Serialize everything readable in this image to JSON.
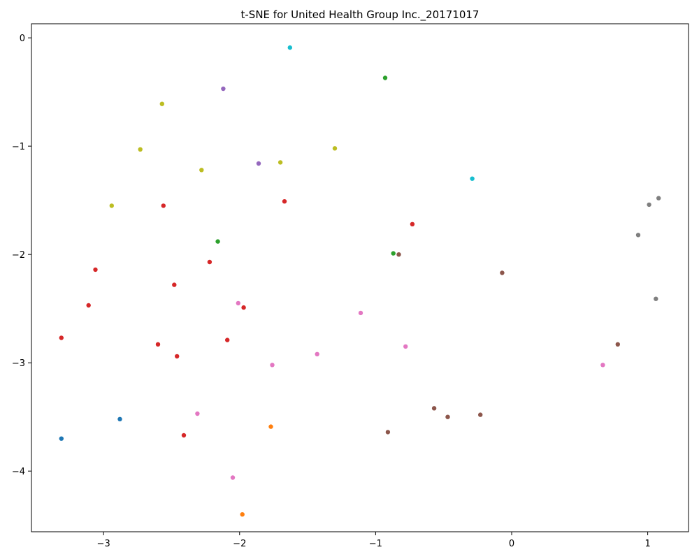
{
  "chart_data": {
    "type": "scatter",
    "title": "t-SNE for United Health Group Inc._20171017",
    "xlabel": "",
    "ylabel": "",
    "xlim": [
      -3.53,
      1.3
    ],
    "ylim": [
      -4.56,
      0.13
    ],
    "xticks": [
      -3,
      -2,
      -1,
      0,
      1
    ],
    "yticks": [
      0,
      -1,
      -2,
      -3,
      -4
    ],
    "xtick_labels": [
      "−3",
      "−2",
      "−1",
      "0",
      "1"
    ],
    "ytick_labels": [
      "0",
      "−1",
      "−2",
      "−3",
      "−4"
    ],
    "grid": false,
    "series": [
      {
        "color": "#1f77b4",
        "points": [
          [
            -2.88,
            -3.52
          ],
          [
            -3.31,
            -3.7
          ]
        ]
      },
      {
        "color": "#ff7f0e",
        "points": [
          [
            -1.77,
            -3.59
          ],
          [
            -1.98,
            -4.4
          ]
        ]
      },
      {
        "color": "#2ca02c",
        "points": [
          [
            -0.93,
            -0.37
          ],
          [
            -2.16,
            -1.88
          ],
          [
            -0.87,
            -1.99
          ]
        ]
      },
      {
        "color": "#d62728",
        "points": [
          [
            -2.56,
            -1.55
          ],
          [
            -1.67,
            -1.51
          ],
          [
            -0.73,
            -1.72
          ],
          [
            -3.06,
            -2.14
          ],
          [
            -2.22,
            -2.07
          ],
          [
            -2.48,
            -2.28
          ],
          [
            -3.11,
            -2.47
          ],
          [
            -1.97,
            -2.49
          ],
          [
            -3.31,
            -2.77
          ],
          [
            -2.6,
            -2.83
          ],
          [
            -2.09,
            -2.79
          ],
          [
            -2.46,
            -2.94
          ],
          [
            -2.41,
            -3.67
          ]
        ]
      },
      {
        "color": "#9467bd",
        "points": [
          [
            -2.12,
            -0.47
          ],
          [
            -1.86,
            -1.16
          ]
        ]
      },
      {
        "color": "#8c564b",
        "points": [
          [
            -0.83,
            -2.0
          ],
          [
            -0.07,
            -2.17
          ],
          [
            0.78,
            -2.83
          ],
          [
            -0.57,
            -3.42
          ],
          [
            -0.47,
            -3.5
          ],
          [
            -0.23,
            -3.48
          ],
          [
            -0.91,
            -3.64
          ]
        ]
      },
      {
        "color": "#e377c2",
        "points": [
          [
            -2.01,
            -2.45
          ],
          [
            -1.11,
            -2.54
          ],
          [
            -1.43,
            -2.92
          ],
          [
            -0.78,
            -2.85
          ],
          [
            -1.76,
            -3.02
          ],
          [
            0.67,
            -3.02
          ],
          [
            -2.31,
            -3.47
          ],
          [
            -2.05,
            -4.06
          ]
        ]
      },
      {
        "color": "#7f7f7f",
        "points": [
          [
            1.01,
            -1.54
          ],
          [
            1.08,
            -1.48
          ],
          [
            0.93,
            -1.82
          ],
          [
            1.06,
            -2.41
          ]
        ]
      },
      {
        "color": "#bcbd22",
        "points": [
          [
            -2.57,
            -0.61
          ],
          [
            -2.73,
            -1.03
          ],
          [
            -2.28,
            -1.22
          ],
          [
            -1.7,
            -1.15
          ],
          [
            -1.3,
            -1.02
          ],
          [
            -2.94,
            -1.55
          ]
        ]
      },
      {
        "color": "#17becf",
        "points": [
          [
            -1.63,
            -0.09
          ],
          [
            -0.29,
            -1.3
          ]
        ]
      }
    ]
  }
}
